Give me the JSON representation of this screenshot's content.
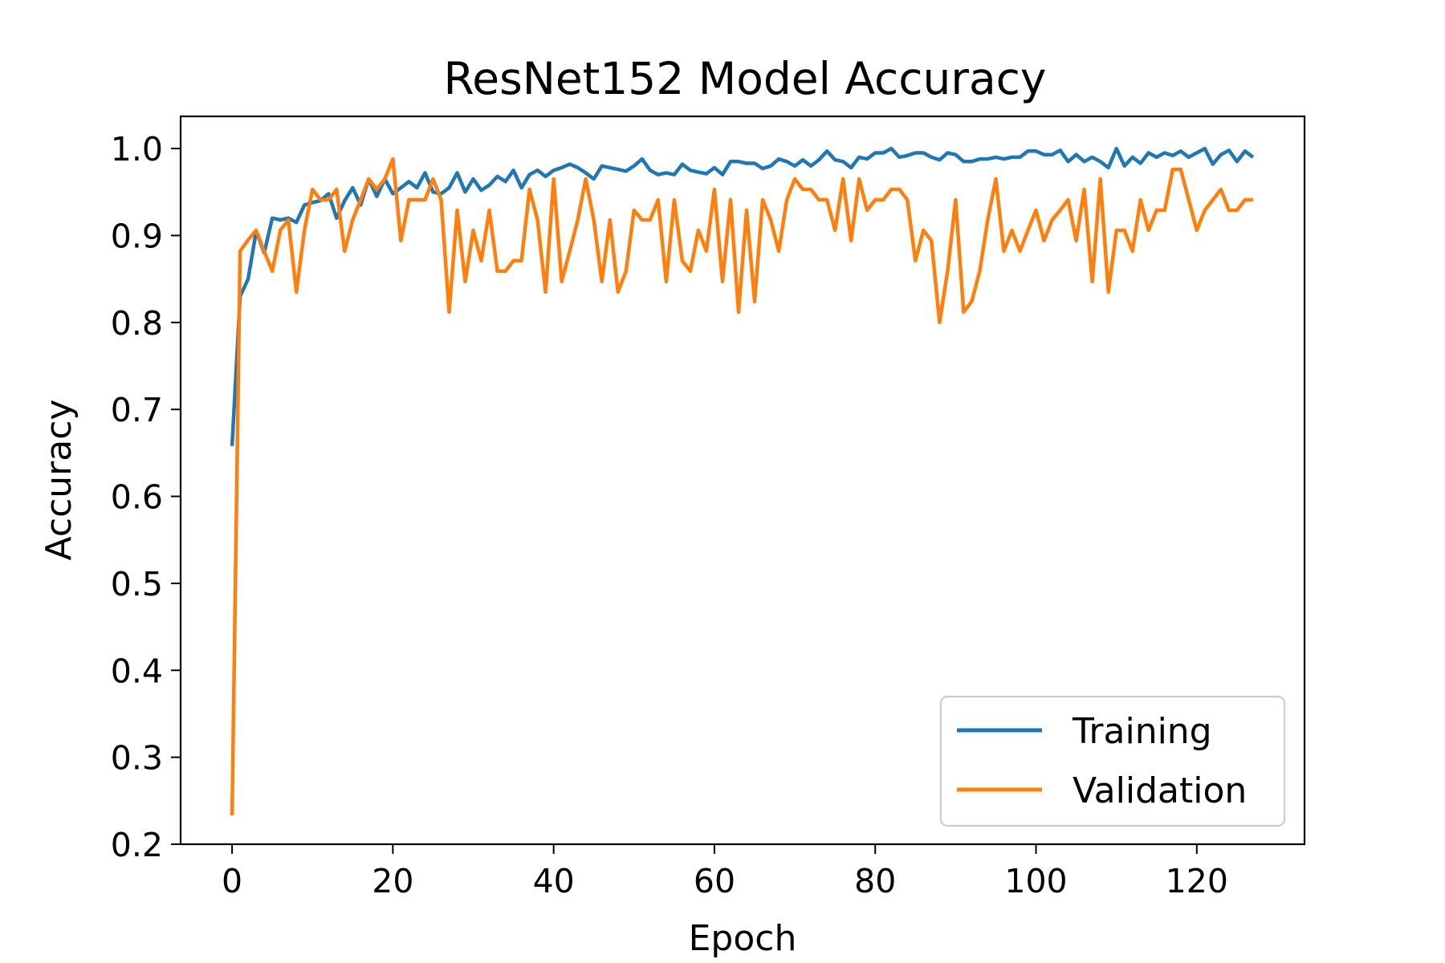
{
  "chart_data": {
    "type": "line",
    "title": "ResNet152 Model Accuracy",
    "xlabel": "Epoch",
    "ylabel": "Accuracy",
    "xlim": [
      -6.4,
      133.4
    ],
    "ylim": [
      0.2,
      1.037
    ],
    "grid": false,
    "legend_placement": "lower-right",
    "x_ticks": [
      0,
      20,
      40,
      60,
      80,
      100,
      120
    ],
    "y_ticks": [
      0.2,
      0.3,
      0.4,
      0.5,
      0.6,
      0.7,
      0.8,
      0.9,
      1.0
    ],
    "x_tick_labels": [
      "0",
      "20",
      "40",
      "60",
      "80",
      "100",
      "120"
    ],
    "y_tick_labels": [
      "0.2",
      "0.3",
      "0.4",
      "0.5",
      "0.6",
      "0.7",
      "0.8",
      "0.9",
      "1.0"
    ],
    "series": [
      {
        "name": "Training",
        "color": "#1f77b4",
        "values": [
          0.658,
          0.83,
          0.85,
          0.905,
          0.88,
          0.92,
          0.918,
          0.92,
          0.915,
          0.935,
          0.938,
          0.94,
          0.948,
          0.92,
          0.94,
          0.955,
          0.935,
          0.965,
          0.945,
          0.965,
          0.948,
          0.955,
          0.962,
          0.955,
          0.972,
          0.95,
          0.948,
          0.955,
          0.972,
          0.95,
          0.965,
          0.952,
          0.958,
          0.968,
          0.962,
          0.975,
          0.955,
          0.97,
          0.975,
          0.968,
          0.975,
          0.978,
          0.982,
          0.978,
          0.972,
          0.965,
          0.98,
          0.978,
          0.976,
          0.974,
          0.98,
          0.988,
          0.975,
          0.97,
          0.972,
          0.97,
          0.982,
          0.975,
          0.973,
          0.971,
          0.978,
          0.97,
          0.985,
          0.985,
          0.983,
          0.983,
          0.977,
          0.98,
          0.988,
          0.985,
          0.98,
          0.987,
          0.98,
          0.987,
          0.997,
          0.987,
          0.985,
          0.978,
          0.99,
          0.988,
          0.995,
          0.995,
          1.0,
          0.99,
          0.992,
          0.995,
          0.995,
          0.99,
          0.987,
          0.995,
          0.993,
          0.985,
          0.985,
          0.988,
          0.988,
          0.99,
          0.988,
          0.99,
          0.99,
          0.997,
          0.997,
          0.993,
          0.993,
          0.998,
          0.985,
          0.993,
          0.985,
          0.99,
          0.985,
          0.978,
          1.0,
          0.98,
          0.99,
          0.983,
          0.995,
          0.99,
          0.995,
          0.992,
          0.997,
          0.99,
          0.995,
          1.0,
          0.982,
          0.993,
          0.998,
          0.985,
          0.997,
          0.99
        ]
      },
      {
        "name": "Validation",
        "color": "#ff7f0e",
        "values": [
          0.233,
          0.882,
          0.895,
          0.906,
          0.882,
          0.859,
          0.906,
          0.918,
          0.835,
          0.906,
          0.953,
          0.941,
          0.941,
          0.953,
          0.882,
          0.918,
          0.941,
          0.965,
          0.953,
          0.965,
          0.988,
          0.894,
          0.941,
          0.941,
          0.941,
          0.965,
          0.941,
          0.812,
          0.929,
          0.847,
          0.906,
          0.871,
          0.929,
          0.859,
          0.859,
          0.871,
          0.871,
          0.953,
          0.918,
          0.835,
          0.965,
          0.847,
          0.882,
          0.918,
          0.965,
          0.918,
          0.847,
          0.918,
          0.835,
          0.859,
          0.929,
          0.918,
          0.918,
          0.941,
          0.847,
          0.941,
          0.871,
          0.859,
          0.906,
          0.882,
          0.953,
          0.847,
          0.941,
          0.812,
          0.929,
          0.824,
          0.941,
          0.918,
          0.882,
          0.941,
          0.965,
          0.953,
          0.953,
          0.941,
          0.941,
          0.906,
          0.965,
          0.894,
          0.965,
          0.929,
          0.941,
          0.941,
          0.953,
          0.953,
          0.941,
          0.871,
          0.906,
          0.894,
          0.8,
          0.859,
          0.941,
          0.812,
          0.824,
          0.859,
          0.918,
          0.965,
          0.882,
          0.906,
          0.882,
          0.906,
          0.929,
          0.894,
          0.918,
          0.929,
          0.941,
          0.894,
          0.953,
          0.847,
          0.965,
          0.835,
          0.906,
          0.906,
          0.882,
          0.941,
          0.906,
          0.929,
          0.929,
          0.976,
          0.976,
          0.941,
          0.906,
          0.929,
          0.941,
          0.953,
          0.929,
          0.929,
          0.941,
          0.941
        ]
      }
    ]
  }
}
